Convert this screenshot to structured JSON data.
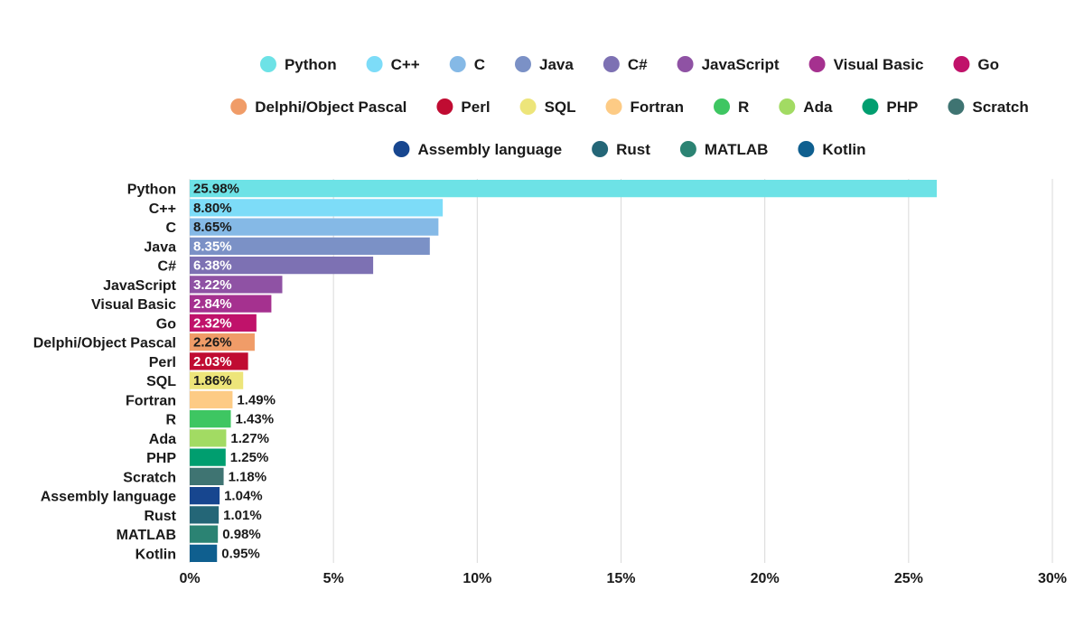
{
  "chart_data": {
    "type": "bar",
    "orientation": "horizontal",
    "title": "",
    "xlabel": "",
    "ylabel": "",
    "xlim": [
      0,
      30
    ],
    "x_ticks": [
      "0%",
      "5%",
      "10%",
      "15%",
      "20%",
      "25%",
      "30%"
    ],
    "x_tick_values": [
      0,
      5,
      10,
      15,
      20,
      25,
      30
    ],
    "grid": "vertical",
    "legend_position": "top",
    "categories": [
      "Python",
      "C++",
      "C",
      "Java",
      "C#",
      "JavaScript",
      "Visual Basic",
      "Go",
      "Delphi/Object Pascal",
      "Perl",
      "SQL",
      "Fortran",
      "R",
      "Ada",
      "PHP",
      "Scratch",
      "Assembly language",
      "Rust",
      "MATLAB",
      "Kotlin"
    ],
    "values": [
      25.98,
      8.8,
      8.65,
      8.35,
      6.38,
      3.22,
      2.84,
      2.32,
      2.26,
      2.03,
      1.86,
      1.49,
      1.43,
      1.27,
      1.25,
      1.18,
      1.04,
      1.01,
      0.98,
      0.95
    ],
    "value_labels": [
      "25.98%",
      "8.80%",
      "8.65%",
      "8.35%",
      "6.38%",
      "3.22%",
      "2.84%",
      "2.32%",
      "2.26%",
      "2.03%",
      "1.86%",
      "1.49%",
      "1.43%",
      "1.27%",
      "1.25%",
      "1.18%",
      "1.04%",
      "1.01%",
      "0.98%",
      "0.95%"
    ],
    "colors": [
      "#6de2e6",
      "#7ddcf8",
      "#85b9e6",
      "#7b91c6",
      "#7d71b3",
      "#8f52a4",
      "#a5318f",
      "#c0126a",
      "#f09c68",
      "#c00c32",
      "#ede57a",
      "#fdcb85",
      "#3ec662",
      "#a2db63",
      "#009e6f",
      "#3f7472",
      "#17468f",
      "#246677",
      "#2b8373",
      "#0f5f8f"
    ],
    "label_colors": [
      "#1a1a1a",
      "#1a1a1a",
      "#1a1a1a",
      "#ffffff",
      "#ffffff",
      "#ffffff",
      "#ffffff",
      "#ffffff",
      "#1a1a1a",
      "#ffffff",
      "#1a1a1a",
      "#1a1a1a",
      "#1a1a1a",
      "#1a1a1a",
      "#1a1a1a",
      "#1a1a1a",
      "#1a1a1a",
      "#1a1a1a",
      "#1a1a1a",
      "#1a1a1a"
    ],
    "label_inside": [
      true,
      true,
      true,
      true,
      true,
      true,
      true,
      true,
      true,
      true,
      true,
      false,
      false,
      false,
      false,
      false,
      false,
      false,
      false,
      false
    ],
    "legend_rows": [
      [
        "Python",
        "C++",
        "C",
        "Java",
        "C#",
        "JavaScript",
        "Visual Basic",
        "Go"
      ],
      [
        "Delphi/Object Pascal",
        "Perl",
        "SQL",
        "Fortran",
        "R",
        "Ada",
        "PHP",
        "Scratch"
      ],
      [
        "Assembly language",
        "Rust",
        "MATLAB",
        "Kotlin"
      ]
    ]
  }
}
